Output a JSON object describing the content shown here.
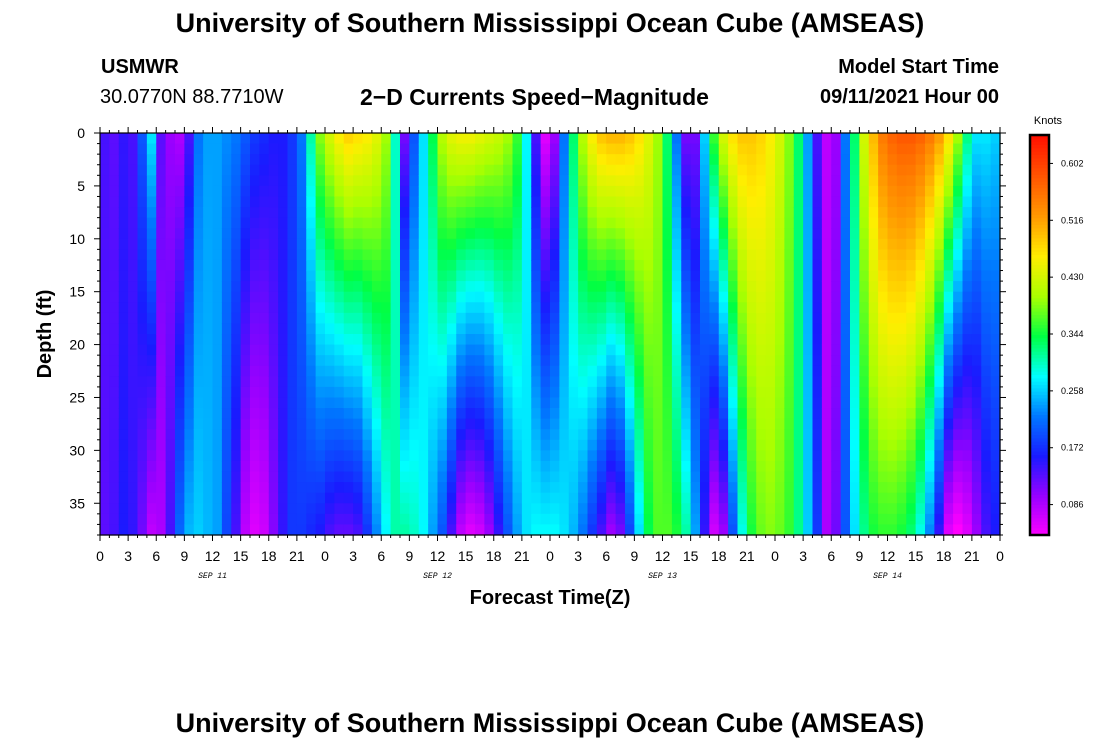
{
  "page": {
    "title_top": "University of Southern Mississippi Ocean Cube (AMSEAS)",
    "title_bottom": "University of Southern Mississippi Ocean Cube (AMSEAS)",
    "station_id": "USMWR",
    "station_coords": "30.0770N  88.7710W",
    "plot_title": "2−D Currents Speed−Magnitude",
    "model_start_label": "Model Start Time",
    "model_start_value": "09/11/2021 Hour 00"
  },
  "chart_data": {
    "type": "heatmap",
    "xlabel": "Forecast Time(Z)",
    "ylabel": "Depth (ft)",
    "x_unit": "hours from 09/11/2021 00Z",
    "xlim": [
      0,
      96
    ],
    "ylim": [
      0,
      38
    ],
    "y_inverted": true,
    "x_tick_labels": [
      "0",
      "3",
      "6",
      "9",
      "12",
      "15",
      "18",
      "21",
      "0",
      "3",
      "6",
      "9",
      "12",
      "15",
      "18",
      "21",
      "0",
      "3",
      "6",
      "9",
      "12",
      "15",
      "18",
      "21",
      "0",
      "3",
      "6",
      "9",
      "12",
      "15",
      "18",
      "21",
      "0"
    ],
    "date_labels": [
      "SEP 11",
      "SEP 12",
      "SEP 13",
      "SEP 14"
    ],
    "y_tick_labels": [
      "0",
      "5",
      "10",
      "15",
      "20",
      "25",
      "30",
      "35"
    ],
    "colorbar": {
      "title": "Knots",
      "tick_labels": [
        "0.602",
        "0.516",
        "0.430",
        "0.344",
        "0.258",
        "0.172",
        "0.086"
      ],
      "range": [
        0.04,
        0.645
      ],
      "colors": [
        "#ff00ff",
        "#9900ff",
        "#1a1aff",
        "#0077ff",
        "#00ffff",
        "#00ff44",
        "#aaff00",
        "#ffee00",
        "#ff9900",
        "#ff5500",
        "#ff1100"
      ]
    },
    "estimated_surface_speed_knots": [
      0.14,
      0.13,
      0.15,
      0.14,
      0.2,
      0.27,
      0.13,
      0.1,
      0.09,
      0.14,
      0.22,
      0.24,
      0.24,
      0.23,
      0.22,
      0.2,
      0.18,
      0.17,
      0.16,
      0.16,
      0.18,
      0.22,
      0.31,
      0.39,
      0.43,
      0.46,
      0.48,
      0.47,
      0.46,
      0.44,
      0.4,
      0.3,
      0.12,
      0.2,
      0.27,
      0.34,
      0.41,
      0.44,
      0.45,
      0.45,
      0.44,
      0.43,
      0.42,
      0.4,
      0.36,
      0.28,
      0.14,
      0.06,
      0.1,
      0.22,
      0.33,
      0.41,
      0.46,
      0.49,
      0.5,
      0.5,
      0.49,
      0.47,
      0.44,
      0.4,
      0.33,
      0.22,
      0.12,
      0.12,
      0.26,
      0.36,
      0.43,
      0.47,
      0.49,
      0.49,
      0.48,
      0.46,
      0.43,
      0.39,
      0.33,
      0.24,
      0.14,
      0.08,
      0.1,
      0.22,
      0.33,
      0.43,
      0.5,
      0.55,
      0.57,
      0.58,
      0.58,
      0.57,
      0.55,
      0.52,
      0.47,
      0.4,
      0.32,
      0.27,
      0.27,
      0.26
    ],
    "estimated_bottom_speed_knots": [
      0.13,
      0.14,
      0.16,
      0.15,
      0.12,
      0.08,
      0.09,
      0.14,
      0.21,
      0.25,
      0.26,
      0.25,
      0.24,
      0.19,
      0.14,
      0.08,
      0.06,
      0.07,
      0.11,
      0.15,
      0.18,
      0.18,
      0.17,
      0.16,
      0.14,
      0.13,
      0.13,
      0.14,
      0.18,
      0.23,
      0.28,
      0.31,
      0.31,
      0.3,
      0.28,
      0.24,
      0.2,
      0.14,
      0.08,
      0.06,
      0.07,
      0.1,
      0.15,
      0.2,
      0.24,
      0.27,
      0.28,
      0.28,
      0.28,
      0.27,
      0.25,
      0.22,
      0.18,
      0.14,
      0.1,
      0.12,
      0.19,
      0.27,
      0.34,
      0.37,
      0.37,
      0.35,
      0.31,
      0.24,
      0.15,
      0.07,
      0.1,
      0.2,
      0.29,
      0.35,
      0.38,
      0.39,
      0.38,
      0.36,
      0.32,
      0.26,
      0.18,
      0.09,
      0.12,
      0.2,
      0.27,
      0.32,
      0.35,
      0.36,
      0.36,
      0.35,
      0.33,
      0.29,
      0.23,
      0.15,
      0.06,
      0.04,
      0.06,
      0.1,
      0.14,
      0.16
    ]
  }
}
